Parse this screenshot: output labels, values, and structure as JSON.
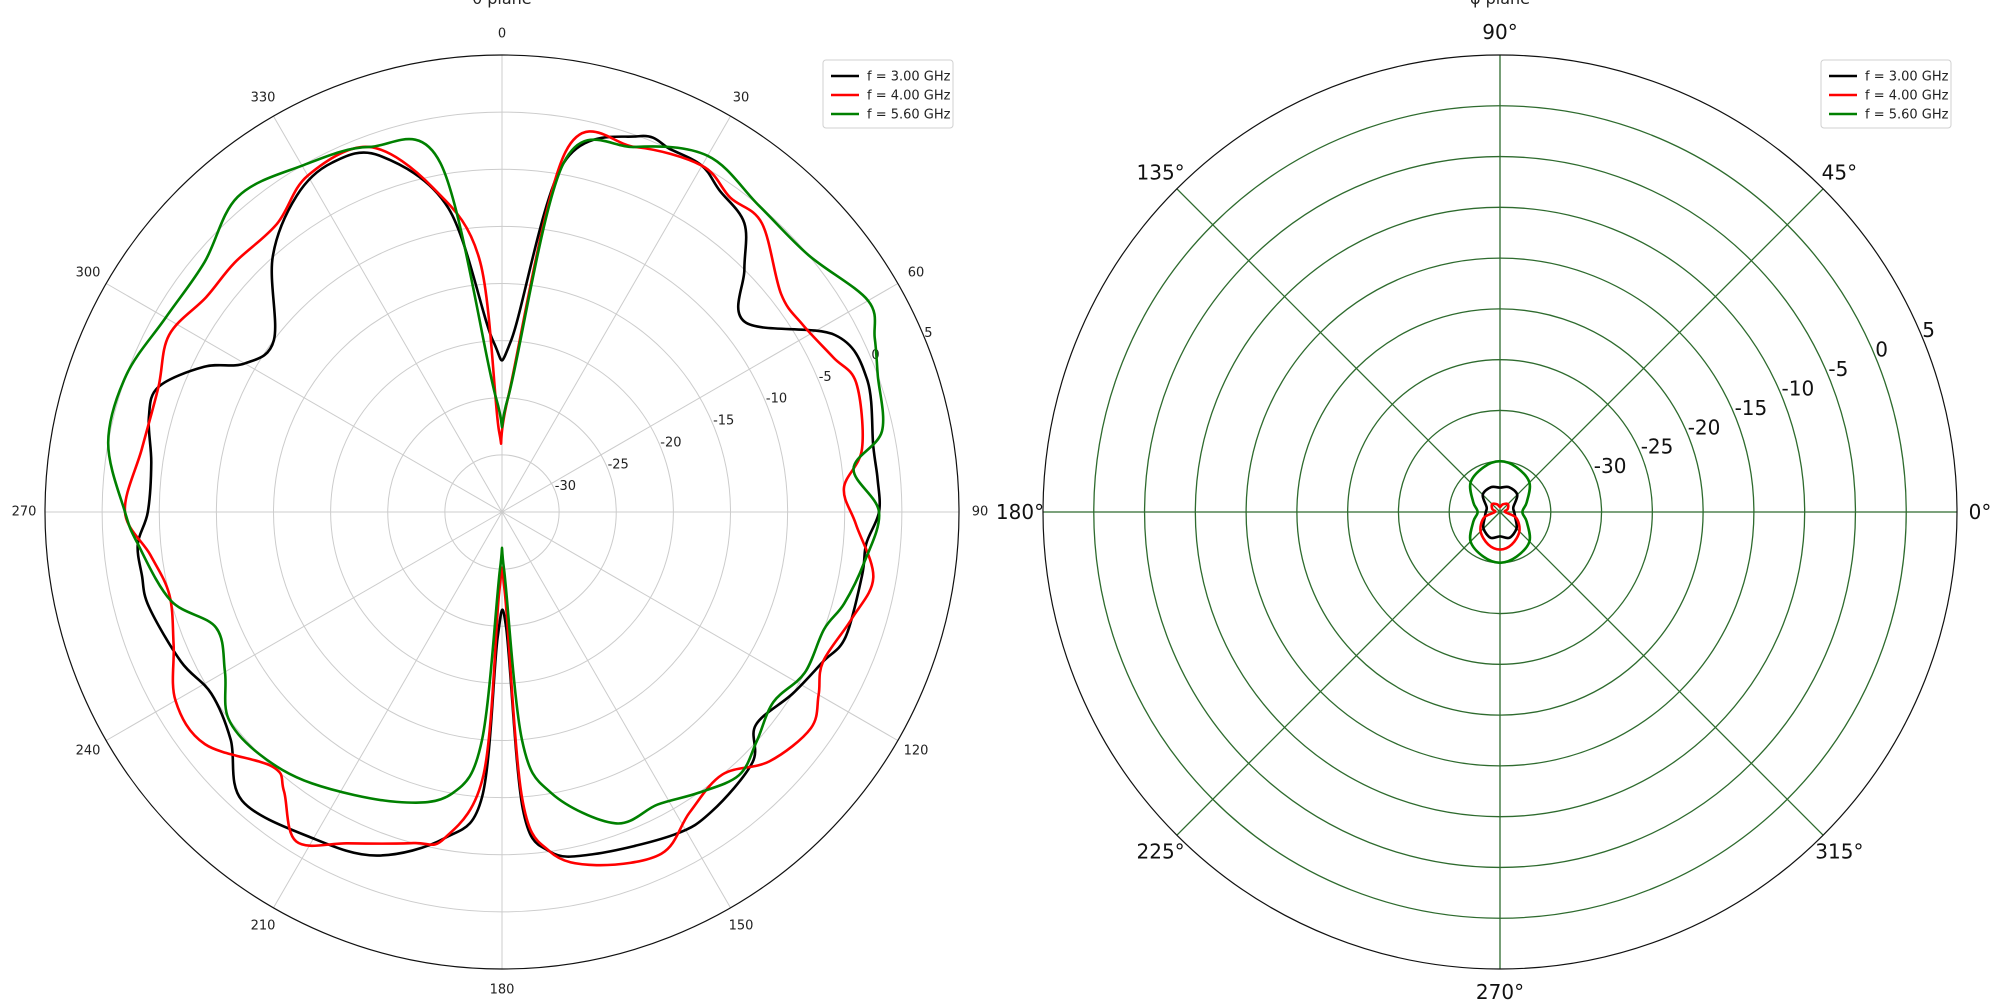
{
  "chart_data": [
    {
      "type": "polar-line",
      "title": "θ plane",
      "angle_labels": [
        "0",
        "30",
        "60",
        "90",
        "120",
        "150",
        "180",
        "210",
        "240",
        "270",
        "300",
        "330"
      ],
      "r_tick_labels": [
        "-30",
        "-25",
        "-20",
        "-15",
        "-10",
        "-5",
        "0",
        "5"
      ],
      "r_range": [
        -35,
        5
      ],
      "angle_zero_location": "top",
      "angle_direction": "clockwise",
      "grid": true,
      "legend_position": "top-right",
      "series": [
        {
          "name": "f = 3.00 GHz",
          "color": "#000000",
          "points": [
            [
              3,
              -20
            ],
            [
              10,
              -4
            ],
            [
              20,
              0
            ],
            [
              25,
              0
            ],
            [
              30,
              0
            ],
            [
              34,
              -1
            ],
            [
              40,
              -2
            ],
            [
              45,
              -5
            ],
            [
              52,
              -8
            ],
            [
              62,
              -2
            ],
            [
              70,
              -1
            ],
            [
              80,
              -2
            ],
            [
              85,
              -2
            ],
            [
              90,
              -2
            ],
            [
              95,
              -3
            ],
            [
              100,
              -3
            ],
            [
              110,
              -3
            ],
            [
              115,
              -4
            ],
            [
              122,
              -5
            ],
            [
              130,
              -6
            ],
            [
              135,
              -4
            ],
            [
              145,
              -3
            ],
            [
              152,
              -3
            ],
            [
              165,
              -4
            ],
            [
              172,
              -5
            ],
            [
              176,
              -9
            ],
            [
              178,
              -25
            ],
            [
              182,
              -24
            ],
            [
              184,
              -10
            ],
            [
              190,
              -6
            ],
            [
              200,
              -3
            ],
            [
              210,
              -2
            ],
            [
              222,
              -1
            ],
            [
              230,
              -4
            ],
            [
              238,
              -5
            ],
            [
              245,
              -4
            ],
            [
              255,
              -3
            ],
            [
              260,
              -3
            ],
            [
              265,
              -3
            ],
            [
              270,
              -4
            ],
            [
              278,
              -4
            ],
            [
              285,
              -3
            ],
            [
              290,
              -3
            ],
            [
              296,
              -6
            ],
            [
              300,
              -9
            ],
            [
              307,
              -10
            ],
            [
              318,
              -5
            ],
            [
              327,
              -2
            ],
            [
              334,
              -1
            ],
            [
              341,
              -2
            ],
            [
              350,
              -8
            ],
            [
              357,
              -20
            ]
          ]
        },
        {
          "name": "f = 4.00 GHz",
          "color": "#ff0000",
          "points": [
            [
              3,
              -25
            ],
            [
              10,
              -3
            ],
            [
              20,
              -1
            ],
            [
              30,
              0
            ],
            [
              36,
              -1
            ],
            [
              42,
              -1
            ],
            [
              52,
              -4
            ],
            [
              58,
              -4
            ],
            [
              65,
              -3
            ],
            [
              70,
              -2
            ],
            [
              80,
              -3
            ],
            [
              86,
              -5
            ],
            [
              92,
              -4
            ],
            [
              100,
              -2
            ],
            [
              107,
              -3
            ],
            [
              115,
              -4
            ],
            [
              120,
              -3
            ],
            [
              125,
              -2
            ],
            [
              133,
              -3
            ],
            [
              140,
              -5
            ],
            [
              148,
              -4
            ],
            [
              155,
              -2
            ],
            [
              165,
              -3
            ],
            [
              172,
              -5
            ],
            [
              176,
              -10
            ],
            [
              178,
              -28
            ],
            [
              182,
              -28
            ],
            [
              184,
              -12
            ],
            [
              190,
              -6
            ],
            [
              195,
              -5
            ],
            [
              205,
              -3
            ],
            [
              212,
              -1
            ],
            [
              218,
              -4
            ],
            [
              222,
              -5
            ],
            [
              232,
              -2
            ],
            [
              240,
              -2
            ],
            [
              248,
              -4
            ],
            [
              256,
              -5
            ],
            [
              263,
              -4
            ],
            [
              270,
              -2
            ],
            [
              280,
              -3
            ],
            [
              290,
              -3
            ],
            [
              298,
              -2
            ],
            [
              306,
              -3
            ],
            [
              313,
              -3
            ],
            [
              322,
              -3
            ],
            [
              330,
              -1
            ],
            [
              340,
              -1
            ],
            [
              348,
              -6
            ],
            [
              355,
              -13
            ],
            [
              358,
              -28
            ]
          ]
        },
        {
          "name": "f = 5.60 GHz",
          "color": "#008000",
          "points": [
            [
              3,
              -25
            ],
            [
              10,
              -4
            ],
            [
              20,
              -1
            ],
            [
              30,
              1
            ],
            [
              40,
              0
            ],
            [
              50,
              0
            ],
            [
              60,
              2
            ],
            [
              65,
              1
            ],
            [
              70,
              0
            ],
            [
              78,
              -1
            ],
            [
              83,
              -4
            ],
            [
              90,
              -2
            ],
            [
              98,
              -3
            ],
            [
              105,
              -4
            ],
            [
              110,
              -5
            ],
            [
              118,
              -5
            ],
            [
              125,
              -6
            ],
            [
              132,
              -5
            ],
            [
              138,
              -4
            ],
            [
              145,
              -5
            ],
            [
              152,
              -6
            ],
            [
              160,
              -6
            ],
            [
              170,
              -10
            ],
            [
              175,
              -15
            ],
            [
              178,
              -30
            ],
            [
              182,
              -30
            ],
            [
              185,
              -15
            ],
            [
              190,
              -10
            ],
            [
              200,
              -8
            ],
            [
              215,
              -6
            ],
            [
              225,
              -5
            ],
            [
              233,
              -5
            ],
            [
              240,
              -7
            ],
            [
              248,
              -8
            ],
            [
              255,
              -5
            ],
            [
              265,
              -3
            ],
            [
              270,
              -2
            ],
            [
              280,
              0
            ],
            [
              290,
              0
            ],
            [
              300,
              -1
            ],
            [
              310,
              -1
            ],
            [
              320,
              1
            ],
            [
              330,
              0
            ],
            [
              340,
              -1
            ],
            [
              350,
              -4
            ],
            [
              357,
              -25
            ]
          ]
        }
      ]
    },
    {
      "type": "polar-line",
      "title": "φ plane",
      "angle_labels": [
        "0°",
        "45°",
        "90°",
        "135°",
        "180°",
        "225°",
        "270°",
        "315°"
      ],
      "r_tick_labels": [
        "-30",
        "-25",
        "-20",
        "-15",
        "-10",
        "-5",
        "0",
        "5"
      ],
      "r_range": [
        -40,
        5
      ],
      "angle_zero_location": "right",
      "angle_direction": "counterclockwise",
      "grid": true,
      "grid_color": "#2e6b2e",
      "legend_position": "top-right",
      "series": [
        {
          "name": "f = 3.00 GHz",
          "color": "#000000",
          "points": [
            [
              0,
              -38.6
            ],
            [
              20,
              -38.6
            ],
            [
              45,
              -37.6
            ],
            [
              70,
              -37.4
            ],
            [
              90,
              -37.6
            ],
            [
              110,
              -37.4
            ],
            [
              135,
              -37.6
            ],
            [
              160,
              -38.6
            ],
            [
              180,
              -38.6
            ],
            [
              200,
              -38.4
            ],
            [
              225,
              -37.7
            ],
            [
              250,
              -37.3
            ],
            [
              270,
              -37.6
            ],
            [
              290,
              -37.3
            ],
            [
              315,
              -37.7
            ],
            [
              340,
              -38.4
            ]
          ]
        },
        {
          "name": "f = 4.00 GHz",
          "color": "#ff0000",
          "points": [
            [
              0,
              -39.5
            ],
            [
              20,
              -39.2
            ],
            [
              45,
              -38.9
            ],
            [
              70,
              -39.2
            ],
            [
              90,
              -39.5
            ],
            [
              110,
              -39.2
            ],
            [
              135,
              -38.9
            ],
            [
              160,
              -39.2
            ],
            [
              180,
              -39.5
            ],
            [
              200,
              -38.3
            ],
            [
              225,
              -37.3
            ],
            [
              250,
              -36.6
            ],
            [
              270,
              -36.3
            ],
            [
              290,
              -36.6
            ],
            [
              315,
              -37.3
            ],
            [
              340,
              -38.3
            ]
          ]
        },
        {
          "name": "f = 5.60 GHz",
          "color": "#008000",
          "points": [
            [
              0,
              -37.8
            ],
            [
              20,
              -37.2
            ],
            [
              45,
              -35.9
            ],
            [
              70,
              -35.3
            ],
            [
              90,
              -35.0
            ],
            [
              110,
              -35.3
            ],
            [
              135,
              -35.9
            ],
            [
              160,
              -37.2
            ],
            [
              180,
              -37.8
            ],
            [
              200,
              -37.2
            ],
            [
              225,
              -35.9
            ],
            [
              250,
              -35.3
            ],
            [
              270,
              -35.0
            ],
            [
              290,
              -35.3
            ],
            [
              315,
              -35.9
            ],
            [
              340,
              -37.2
            ]
          ]
        }
      ]
    }
  ]
}
